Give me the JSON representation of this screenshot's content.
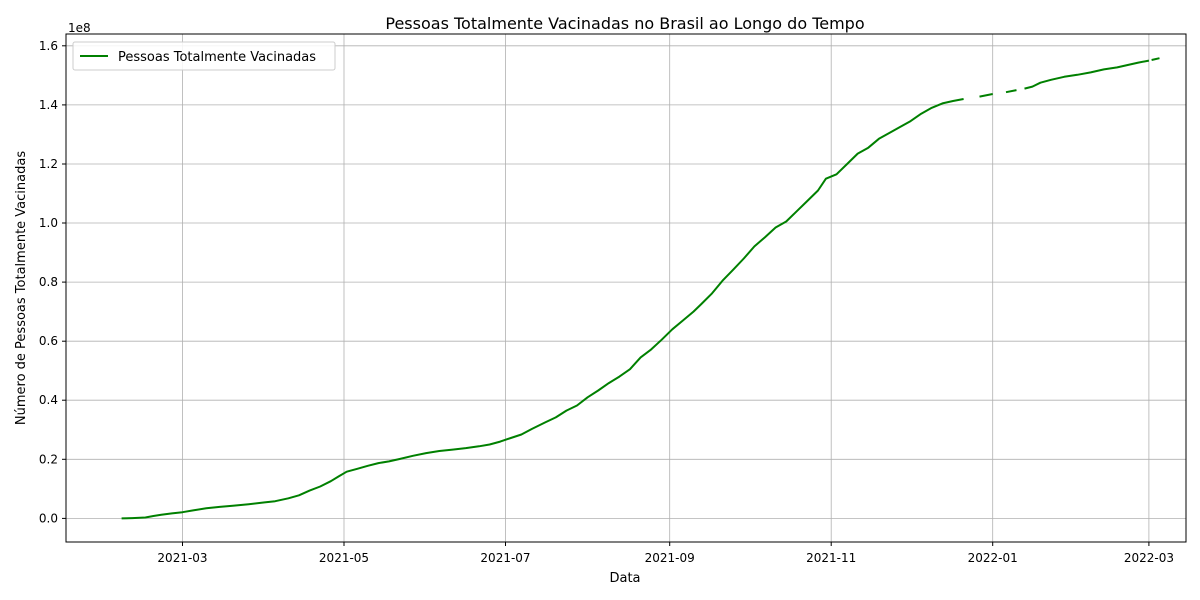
{
  "chart_data": {
    "type": "line",
    "title": "Pessoas Totalmente Vacinadas no Brasil ao Longo do Tempo",
    "xlabel": "Data",
    "ylabel": "Número de Pessoas Totalmente Vacinadas",
    "y_offset_label": "1e8",
    "y_scale": 100000000,
    "xlim": [
      "2021-01-16",
      "2022-03-15"
    ],
    "ylim": [
      -0.08,
      1.64
    ],
    "x_ticks": [
      "2021-03-01",
      "2021-05-01",
      "2021-07-01",
      "2021-09-01",
      "2021-11-01",
      "2022-01-01",
      "2022-03-01"
    ],
    "x_tick_labels": [
      "2021-03",
      "2021-05",
      "2021-07",
      "2021-09",
      "2021-11",
      "2022-01",
      "2022-03"
    ],
    "y_ticks": [
      0.0,
      0.2,
      0.4,
      0.6,
      0.8,
      1.0,
      1.2,
      1.4,
      1.6
    ],
    "y_tick_labels": [
      "0.0",
      "0.2",
      "0.4",
      "0.6",
      "0.8",
      "1.0",
      "1.2",
      "1.4",
      "1.6"
    ],
    "grid": true,
    "legend_position": "top-left",
    "series": [
      {
        "name": "Pessoas Totalmente Vacinadas",
        "color": "#008000",
        "segments": [
          [
            [
              "2021-02-06",
              0.0
            ],
            [
              "2021-02-10",
              0.001
            ],
            [
              "2021-02-15",
              0.003
            ],
            [
              "2021-02-18",
              0.008
            ],
            [
              "2021-02-21",
              0.012
            ],
            [
              "2021-02-25",
              0.017
            ],
            [
              "2021-03-01",
              0.021
            ],
            [
              "2021-03-05",
              0.027
            ],
            [
              "2021-03-10",
              0.034
            ],
            [
              "2021-03-15",
              0.039
            ],
            [
              "2021-03-20",
              0.043
            ],
            [
              "2021-03-26",
              0.048
            ],
            [
              "2021-04-01",
              0.054
            ],
            [
              "2021-04-05",
              0.058
            ],
            [
              "2021-04-10",
              0.068
            ],
            [
              "2021-04-14",
              0.078
            ],
            [
              "2021-04-18",
              0.094
            ],
            [
              "2021-04-22",
              0.108
            ],
            [
              "2021-04-26",
              0.126
            ],
            [
              "2021-04-29",
              0.142
            ],
            [
              "2021-05-02",
              0.158
            ],
            [
              "2021-05-06",
              0.168
            ],
            [
              "2021-05-10",
              0.178
            ],
            [
              "2021-05-14",
              0.187
            ],
            [
              "2021-05-18",
              0.193
            ],
            [
              "2021-05-22",
              0.201
            ],
            [
              "2021-05-27",
              0.212
            ],
            [
              "2021-06-01",
              0.221
            ],
            [
              "2021-06-06",
              0.228
            ],
            [
              "2021-06-11",
              0.233
            ],
            [
              "2021-06-16",
              0.238
            ],
            [
              "2021-06-21",
              0.244
            ],
            [
              "2021-06-25",
              0.25
            ],
            [
              "2021-06-29",
              0.26
            ],
            [
              "2021-07-03",
              0.272
            ],
            [
              "2021-07-07",
              0.284
            ],
            [
              "2021-07-11",
              0.303
            ],
            [
              "2021-07-16",
              0.325
            ],
            [
              "2021-07-20",
              0.342
            ],
            [
              "2021-07-24",
              0.365
            ],
            [
              "2021-07-28",
              0.382
            ],
            [
              "2021-08-01",
              0.41
            ],
            [
              "2021-08-05",
              0.433
            ],
            [
              "2021-08-09",
              0.458
            ],
            [
              "2021-08-13",
              0.48
            ],
            [
              "2021-08-17",
              0.505
            ],
            [
              "2021-08-21",
              0.545
            ],
            [
              "2021-08-25",
              0.572
            ],
            [
              "2021-08-29",
              0.605
            ],
            [
              "2021-09-02",
              0.64
            ],
            [
              "2021-09-06",
              0.67
            ],
            [
              "2021-09-10",
              0.7
            ],
            [
              "2021-09-13",
              0.726
            ],
            [
              "2021-09-17",
              0.762
            ],
            [
              "2021-09-21",
              0.805
            ],
            [
              "2021-09-25",
              0.842
            ],
            [
              "2021-09-29",
              0.88
            ],
            [
              "2021-10-03",
              0.921
            ],
            [
              "2021-10-07",
              0.952
            ],
            [
              "2021-10-11",
              0.985
            ],
            [
              "2021-10-15",
              1.005
            ],
            [
              "2021-10-19",
              1.04
            ],
            [
              "2021-10-23",
              1.075
            ],
            [
              "2021-10-27",
              1.11
            ],
            [
              "2021-10-30",
              1.15
            ],
            [
              "2021-11-03",
              1.165
            ],
            [
              "2021-11-07",
              1.2
            ],
            [
              "2021-11-11",
              1.235
            ],
            [
              "2021-11-15",
              1.255
            ],
            [
              "2021-11-19",
              1.285
            ],
            [
              "2021-11-23",
              1.305
            ],
            [
              "2021-11-27",
              1.325
            ],
            [
              "2021-12-01",
              1.345
            ],
            [
              "2021-12-05",
              1.37
            ],
            [
              "2021-12-09",
              1.39
            ],
            [
              "2021-12-13",
              1.405
            ],
            [
              "2021-12-17",
              1.413
            ],
            [
              "2021-12-21",
              1.42
            ]
          ],
          [
            [
              "2021-12-27",
              1.428
            ],
            [
              "2022-01-01",
              1.437
            ]
          ],
          [
            [
              "2022-01-06",
              1.443
            ],
            [
              "2022-01-10",
              1.45
            ]
          ],
          [
            [
              "2022-01-13",
              1.455
            ],
            [
              "2022-01-16",
              1.462
            ],
            [
              "2022-01-19",
              1.475
            ],
            [
              "2022-01-23",
              1.485
            ],
            [
              "2022-01-28",
              1.495
            ],
            [
              "2022-02-02",
              1.502
            ],
            [
              "2022-02-07",
              1.51
            ],
            [
              "2022-02-12",
              1.52
            ],
            [
              "2022-02-17",
              1.527
            ],
            [
              "2022-02-21",
              1.535
            ],
            [
              "2022-02-25",
              1.543
            ],
            [
              "2022-03-01",
              1.55
            ]
          ],
          [
            [
              "2022-03-02",
              1.552
            ],
            [
              "2022-03-05",
              1.558
            ]
          ]
        ]
      }
    ]
  }
}
